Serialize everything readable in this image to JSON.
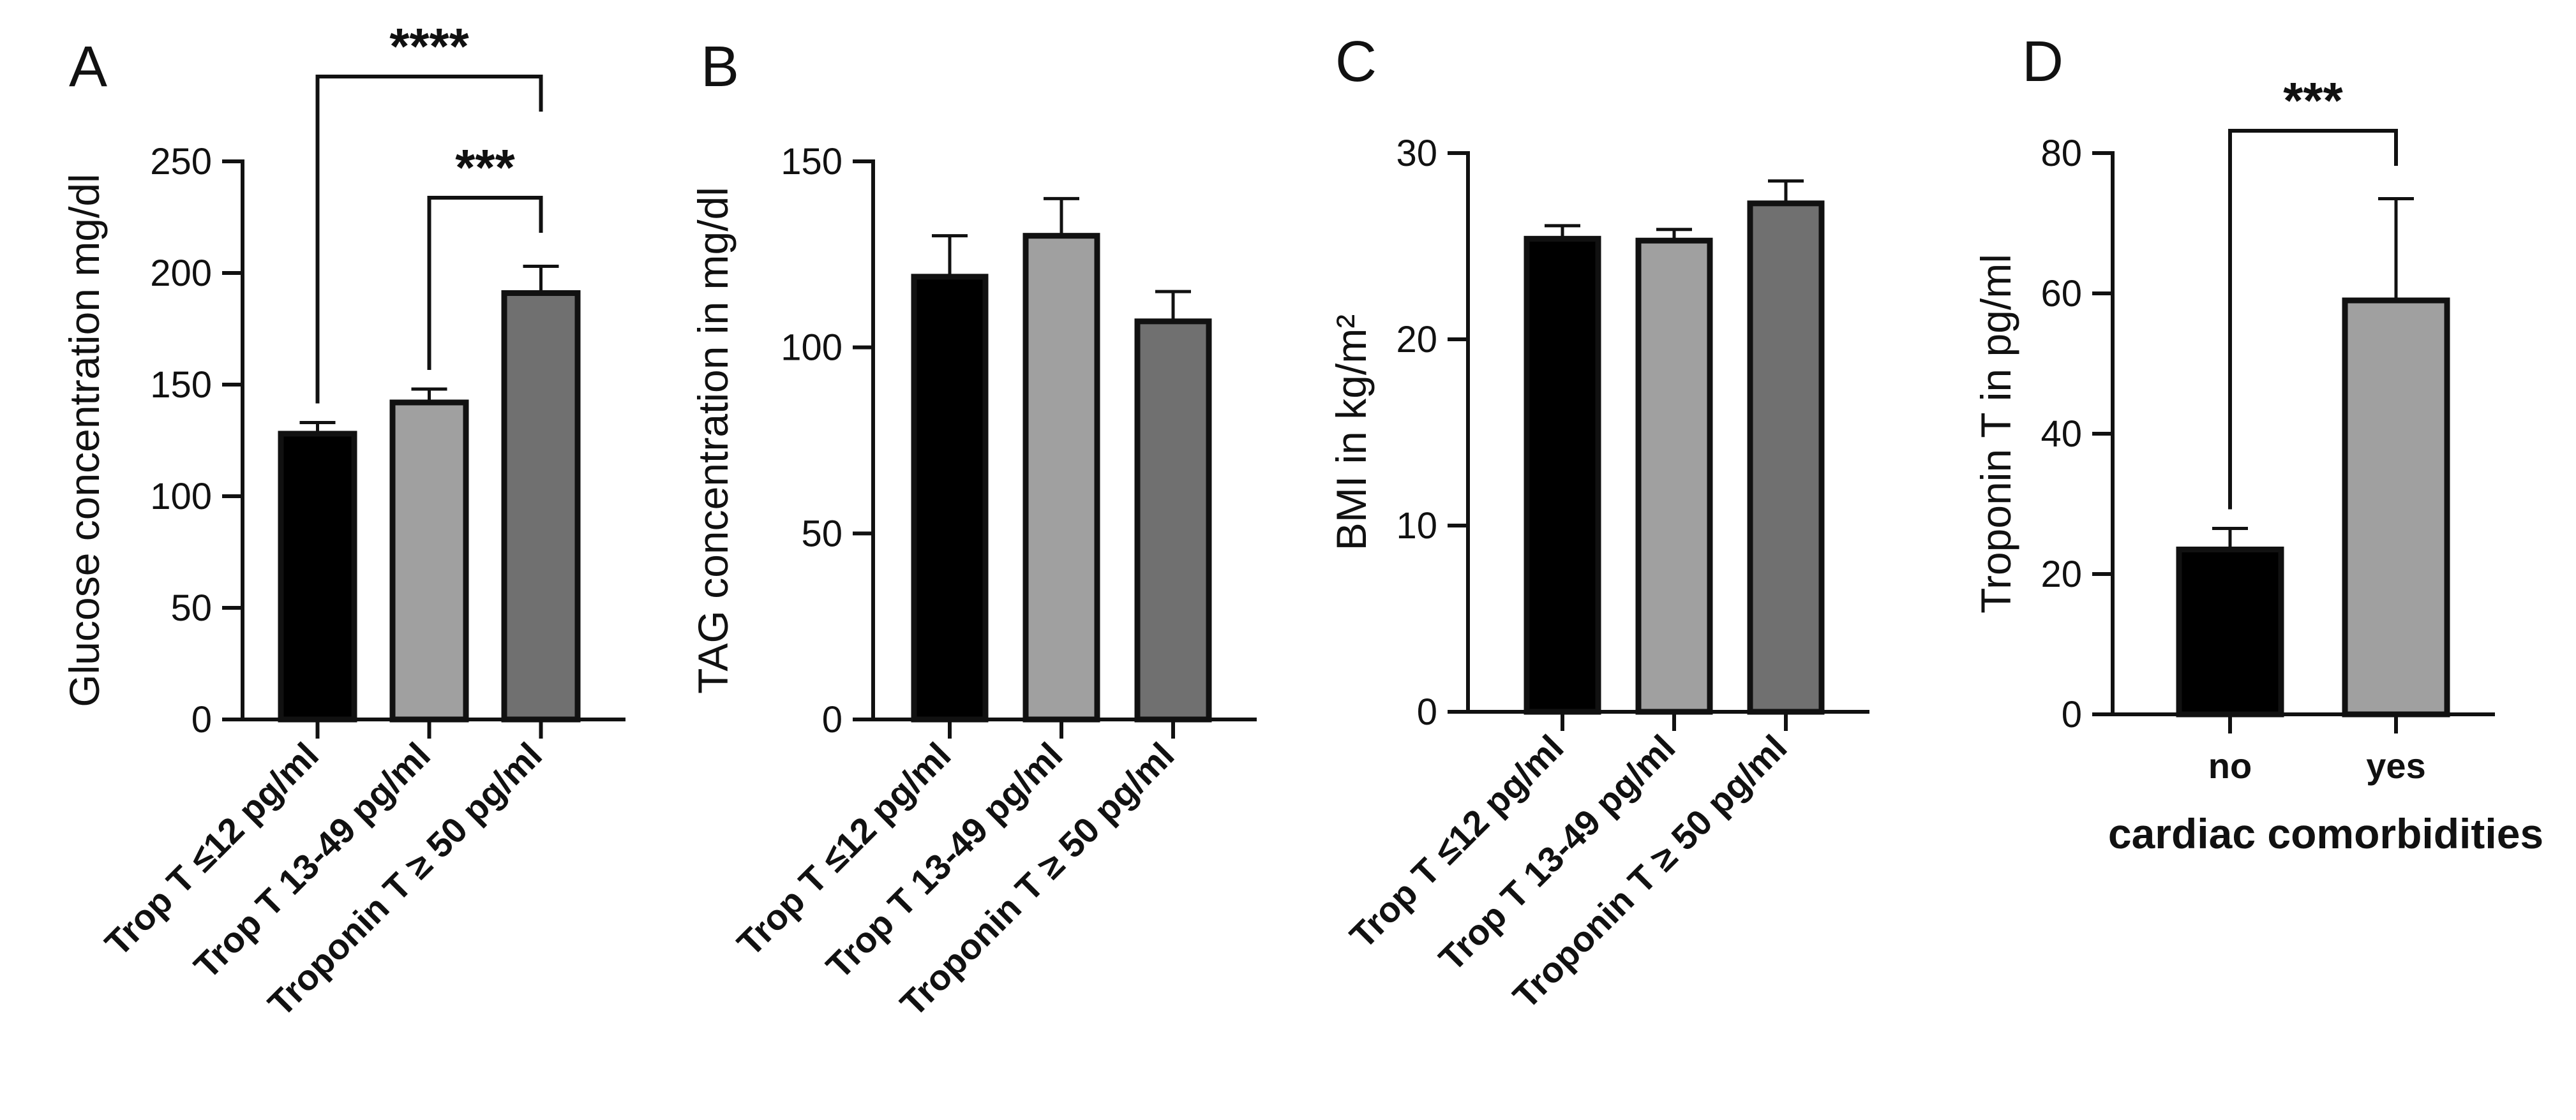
{
  "chart_data": [
    {
      "type": "bar",
      "panel": "A",
      "ylabel": "Glucose concentration mg/dl",
      "xlabel": "",
      "ylim": [
        0,
        250
      ],
      "yticks": [
        0,
        50,
        100,
        150,
        200,
        250
      ],
      "categories": [
        "Trop T ≤12 pg/ml",
        "Trop T 13-49 pg/ml",
        "Troponin T ≥ 50 pg/ml"
      ],
      "values": [
        128,
        142,
        191
      ],
      "errors": [
        5,
        6,
        12
      ],
      "colors": [
        "#000000",
        "#a0a0a0",
        "#707070"
      ],
      "significance": [
        {
          "from": 0,
          "to": 2,
          "label": "****"
        },
        {
          "from": 1,
          "to": 2,
          "label": "***"
        }
      ]
    },
    {
      "type": "bar",
      "panel": "B",
      "ylabel": "TAG concentration in mg/dl",
      "xlabel": "",
      "ylim": [
        0,
        150
      ],
      "yticks": [
        0,
        50,
        100,
        150
      ],
      "categories": [
        "Trop T ≤12 pg/ml",
        "Trop T 13-49 pg/ml",
        "Troponin T ≥ 50 pg/ml"
      ],
      "values": [
        119,
        130,
        107
      ],
      "errors": [
        11,
        10,
        8
      ],
      "colors": [
        "#000000",
        "#a0a0a0",
        "#707070"
      ],
      "significance": []
    },
    {
      "type": "bar",
      "panel": "C",
      "ylabel": "BMI in kg/m²",
      "xlabel": "",
      "ylim": [
        0,
        30
      ],
      "yticks": [
        0,
        10,
        20,
        30
      ],
      "categories": [
        "Trop T ≤12 pg/ml",
        "Trop T 13-49 pg/ml",
        "Troponin T ≥ 50 pg/ml"
      ],
      "values": [
        25.4,
        25.3,
        27.3
      ],
      "errors": [
        0.7,
        0.6,
        1.2
      ],
      "colors": [
        "#000000",
        "#a0a0a0",
        "#707070"
      ],
      "significance": []
    },
    {
      "type": "bar",
      "panel": "D",
      "ylabel": "Troponin T in pg/ml",
      "xlabel": "cardiac comorbidities",
      "ylim": [
        0,
        80
      ],
      "yticks": [
        0,
        20,
        40,
        60,
        80
      ],
      "categories": [
        "no",
        "yes"
      ],
      "values": [
        23.5,
        59
      ],
      "errors": [
        3,
        14.5
      ],
      "colors": [
        "#000000",
        "#a0a0a0"
      ],
      "significance": [
        {
          "from": 0,
          "to": 1,
          "label": "***"
        }
      ]
    }
  ]
}
